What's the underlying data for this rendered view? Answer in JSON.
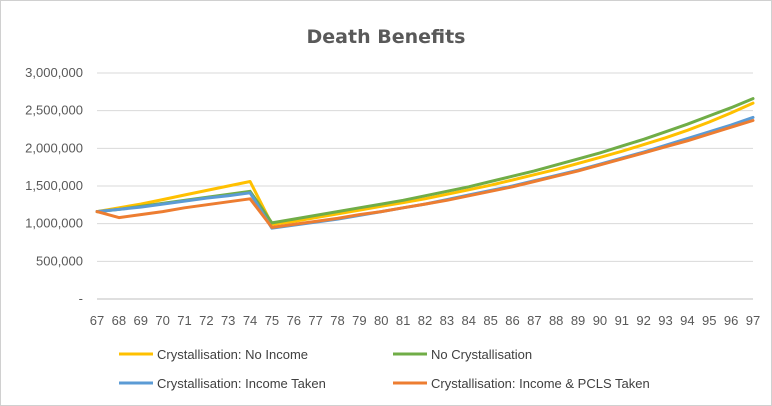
{
  "chart_data": {
    "type": "line",
    "title": "Death Benefits",
    "xlabel": "",
    "ylabel": "",
    "ylim": [
      0,
      3000000
    ],
    "yticks": [
      0,
      500000,
      1000000,
      1500000,
      2000000,
      2500000,
      3000000
    ],
    "ytick_labels": [
      "-",
      "500,000",
      "1,000,000",
      "1,500,000",
      "2,000,000",
      "2,500,000",
      "3,000,000"
    ],
    "grid": true,
    "legend": "bottom",
    "categories": [
      "67",
      "68",
      "69",
      "70",
      "71",
      "72",
      "73",
      "74",
      "75",
      "76",
      "77",
      "78",
      "79",
      "80",
      "81",
      "82",
      "83",
      "84",
      "85",
      "86",
      "87",
      "88",
      "89",
      "90",
      "91",
      "92",
      "93",
      "94",
      "95",
      "96",
      "97"
    ],
    "series": [
      {
        "name": "Crystallisation: No Income",
        "color": "#FFC000",
        "values": [
          1160000,
          1210000,
          1260000,
          1320000,
          1380000,
          1440000,
          1500000,
          1560000,
          990000,
          1030000,
          1080000,
          1130000,
          1180000,
          1230000,
          1280000,
          1330000,
          1390000,
          1450000,
          1510000,
          1580000,
          1650000,
          1720000,
          1800000,
          1880000,
          1960000,
          2050000,
          2140000,
          2240000,
          2350000,
          2470000,
          2600000
        ]
      },
      {
        "name": "No Crystallisation",
        "color": "#70AD47",
        "values": [
          1160000,
          1190000,
          1230000,
          1270000,
          1310000,
          1350000,
          1390000,
          1430000,
          1010000,
          1060000,
          1110000,
          1160000,
          1210000,
          1260000,
          1310000,
          1370000,
          1430000,
          1490000,
          1560000,
          1630000,
          1700000,
          1780000,
          1860000,
          1940000,
          2030000,
          2120000,
          2220000,
          2320000,
          2430000,
          2540000,
          2660000
        ]
      },
      {
        "name": "Crystallisation: Income Taken",
        "color": "#5B9BD5",
        "values": [
          1160000,
          1190000,
          1220000,
          1260000,
          1300000,
          1340000,
          1370000,
          1410000,
          940000,
          980000,
          1020000,
          1060000,
          1110000,
          1160000,
          1210000,
          1260000,
          1320000,
          1380000,
          1440000,
          1500000,
          1570000,
          1640000,
          1710000,
          1790000,
          1870000,
          1950000,
          2040000,
          2130000,
          2220000,
          2310000,
          2410000
        ]
      },
      {
        "name": "Crystallisation: Income & PCLS Taken",
        "color": "#ED7D31",
        "values": [
          1160000,
          1080000,
          1120000,
          1160000,
          1210000,
          1250000,
          1290000,
          1330000,
          950000,
          990000,
          1030000,
          1070000,
          1120000,
          1160000,
          1210000,
          1260000,
          1310000,
          1370000,
          1430000,
          1490000,
          1560000,
          1630000,
          1700000,
          1780000,
          1860000,
          1940000,
          2020000,
          2100000,
          2190000,
          2280000,
          2370000
        ]
      }
    ]
  }
}
